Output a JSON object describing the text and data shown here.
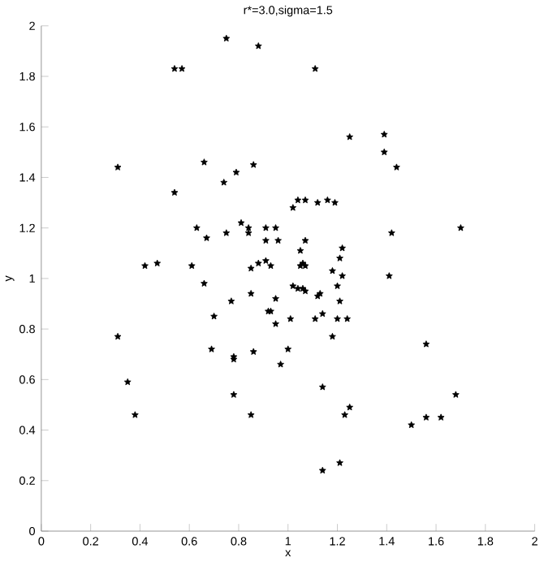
{
  "chart_data": {
    "type": "scatter",
    "title": "r*=3.0,sigma=1.5",
    "xlabel": "x",
    "ylabel": "y",
    "marker": "star",
    "grid": false,
    "xlim": [
      0,
      2
    ],
    "ylim": [
      0,
      2
    ],
    "xticks": [
      0,
      0.2,
      0.4,
      0.6,
      0.8,
      1,
      1.2,
      1.4,
      1.6,
      1.8,
      2
    ],
    "yticks": [
      0,
      0.2,
      0.4,
      0.6,
      0.8,
      1,
      1.2,
      1.4,
      1.6,
      1.8,
      2
    ],
    "series": [
      {
        "color": "#000000",
        "x": [
          0.75,
          0.88,
          0.54,
          0.57,
          0.31,
          0.66,
          0.86,
          0.79,
          0.54,
          0.74,
          1.02,
          1.04,
          0.63,
          0.67,
          0.75,
          0.81,
          0.84,
          0.84,
          0.91,
          0.95,
          0.91,
          0.96,
          1.05,
          0.42,
          0.47,
          0.61,
          0.85,
          0.88,
          0.91,
          0.93,
          1.05,
          1.06,
          1.07,
          1.11,
          1.25,
          1.39,
          1.39,
          1.44,
          1.07,
          1.12,
          1.16,
          1.19,
          1.07,
          1.42,
          1.7,
          1.22,
          1.21,
          1.18,
          1.22,
          1.41,
          1.02,
          1.04,
          1.06,
          1.07,
          1.2,
          1.12,
          1.13,
          0.95,
          1.21,
          0.93,
          1.14,
          1.01,
          1.11,
          1.2,
          1.24,
          0.95,
          1.18,
          1.56,
          1.0,
          0.97,
          1.14,
          1.68,
          1.25,
          1.23,
          1.56,
          1.62,
          1.5,
          1.21,
          1.14,
          0.31,
          0.35,
          0.38,
          0.66,
          0.7,
          0.77,
          0.85,
          0.92,
          0.69,
          0.78,
          0.78,
          0.86,
          0.78,
          0.85
        ],
        "values": [
          1.95,
          1.92,
          1.83,
          1.83,
          1.44,
          1.46,
          1.45,
          1.42,
          1.34,
          1.38,
          1.28,
          1.31,
          1.2,
          1.16,
          1.18,
          1.22,
          1.2,
          1.18,
          1.2,
          1.2,
          1.15,
          1.15,
          1.11,
          1.05,
          1.06,
          1.05,
          1.04,
          1.06,
          1.07,
          1.05,
          1.05,
          1.06,
          1.05,
          1.83,
          1.56,
          1.57,
          1.5,
          1.44,
          1.31,
          1.3,
          1.31,
          1.3,
          1.15,
          1.18,
          1.2,
          1.12,
          1.08,
          1.03,
          1.01,
          1.01,
          0.97,
          0.96,
          0.96,
          0.95,
          0.97,
          0.93,
          0.94,
          0.92,
          0.91,
          0.87,
          0.86,
          0.84,
          0.84,
          0.84,
          0.84,
          0.82,
          0.77,
          0.74,
          0.72,
          0.66,
          0.57,
          0.54,
          0.49,
          0.46,
          0.45,
          0.45,
          0.42,
          0.27,
          0.24,
          0.77,
          0.59,
          0.46,
          0.98,
          0.85,
          0.91,
          0.94,
          0.87,
          0.72,
          0.69,
          0.68,
          0.71,
          0.54,
          0.46
        ]
      }
    ]
  }
}
